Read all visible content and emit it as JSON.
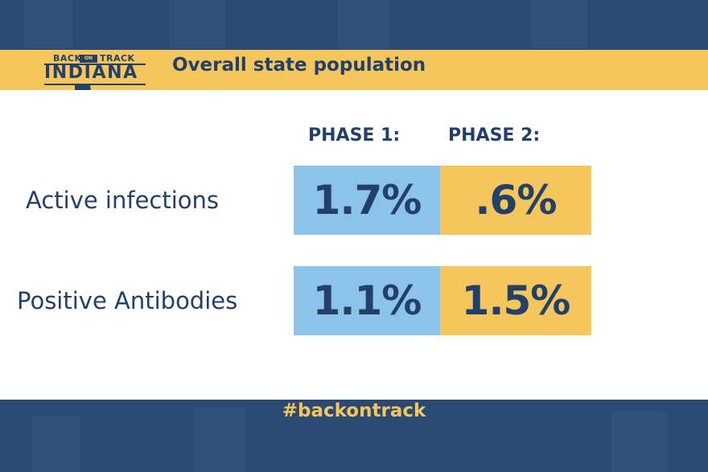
{
  "header": {
    "logo": {
      "top_left": "BACK",
      "middle": "ON",
      "top_right": "TRACK",
      "main": "INDIANA"
    },
    "title": "Overall state population"
  },
  "table": {
    "columns": [
      "PHASE 1:",
      "PHASE 2:"
    ],
    "rows": [
      {
        "label": "Active infections",
        "values": [
          "1.7%",
          ".6%"
        ]
      },
      {
        "label": "Positive Antibodies",
        "values": [
          "1.1%",
          "1.5%"
        ]
      }
    ]
  },
  "footer": {
    "hashtag": "#backontrack"
  },
  "colors": {
    "navy": "#23406b",
    "band": "#2b4a73",
    "gold": "#f5c65b",
    "blue": "#8cc3e8"
  }
}
